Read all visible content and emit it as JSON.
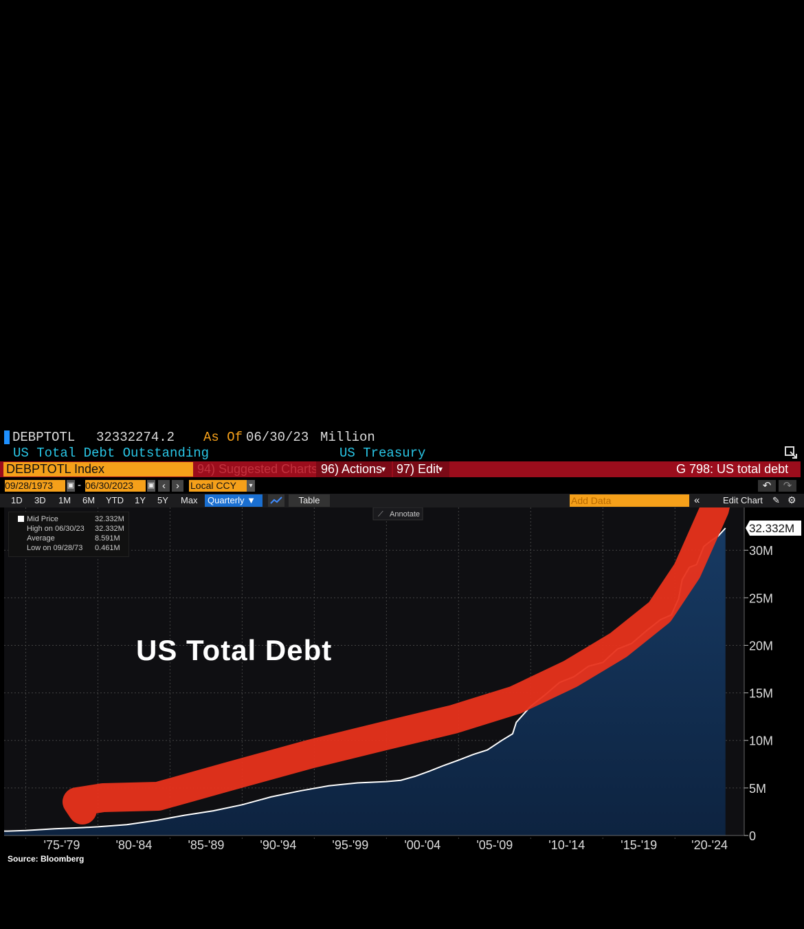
{
  "header": {
    "ticker": "DEBPTOTL",
    "last_value": "32332274.2",
    "as_of_label": "As Of",
    "as_of_date": "06/30/23",
    "unit": "Million",
    "description": "US Total Debt Outstanding",
    "source_org": "US Treasury"
  },
  "toolbar": {
    "security": "DEBPTOTL Index",
    "suggested": "94) Suggested Charts",
    "actions": "96) Actions",
    "edit": "97) Edit",
    "page_title": "G 798: US total debt"
  },
  "dates": {
    "start": "09/28/1973",
    "end": "06/30/2023",
    "currency": "Local CCY"
  },
  "periods": [
    "1D",
    "3D",
    "1M",
    "6M",
    "YTD",
    "1Y",
    "5Y",
    "Max"
  ],
  "controls": {
    "frequency": "Quarterly ▼",
    "table": "Table",
    "add_data_placeholder": "Add Data",
    "edit_chart": "Edit Chart",
    "annotate": "Annotate"
  },
  "legend": {
    "series_name": "Mid Price",
    "series_value": "32.332M",
    "high_label": "High on 06/30/23",
    "high_value": "32.332M",
    "avg_label": "Average",
    "avg_value": "8.591M",
    "low_label": "Low on 09/28/73",
    "low_value": "0.461M"
  },
  "annotation_title": "US Total Debt",
  "source": "Source:  Bloomberg",
  "colors": {
    "area_top": "#173a63",
    "area_bottom": "#0d2340",
    "line": "#ffffff",
    "arrow": "#e8331c",
    "toolbar_red": "#9b0d1c",
    "orange": "#f5a01a",
    "cyan": "#29c6e6"
  },
  "chart_data": {
    "type": "area",
    "title": "",
    "xlabel": "",
    "ylabel": "",
    "last_label": "32.332M",
    "x_tick_labels": [
      "'75-'79",
      "'80-'84",
      "'85-'89",
      "'90-'94",
      "'95-'99",
      "'00-'04",
      "'05-'09",
      "'10-'14",
      "'15-'19",
      "'20-'24"
    ],
    "y_tick_labels": [
      "0",
      "5M",
      "10M",
      "15M",
      "20M",
      "25M",
      "30M"
    ],
    "y_ticks": [
      0,
      5,
      10,
      15,
      20,
      25,
      30
    ],
    "ylim": [
      0,
      34.5
    ],
    "xlim": [
      1973.5,
      2024.8
    ],
    "grid": true,
    "series": [
      {
        "name": "Mid Price",
        "x": [
          1973.75,
          1975,
          1977,
          1979,
          1980,
          1982,
          1984,
          1986,
          1988,
          1990,
          1992,
          1994,
          1996,
          1998,
          2000,
          2001,
          2002,
          2003,
          2004,
          2005,
          2006,
          2007,
          2008,
          2008.75,
          2009,
          2010,
          2011,
          2012,
          2013,
          2014,
          2015,
          2016,
          2017,
          2018,
          2019,
          2019.75,
          2020.25,
          2020.5,
          2021,
          2021.5,
          2022,
          2022.5,
          2023,
          2023.5
        ],
        "y": [
          0.461,
          0.53,
          0.7,
          0.83,
          0.91,
          1.14,
          1.57,
          2.13,
          2.6,
          3.23,
          4.06,
          4.69,
          5.22,
          5.53,
          5.67,
          5.81,
          6.23,
          6.78,
          7.38,
          7.93,
          8.51,
          9.0,
          10.0,
          10.7,
          11.9,
          13.6,
          14.8,
          16.1,
          16.7,
          17.8,
          18.2,
          19.6,
          20.2,
          21.5,
          22.7,
          23.2,
          24.9,
          26.9,
          28.2,
          28.5,
          30.4,
          31.0,
          31.5,
          32.332
        ]
      }
    ]
  }
}
